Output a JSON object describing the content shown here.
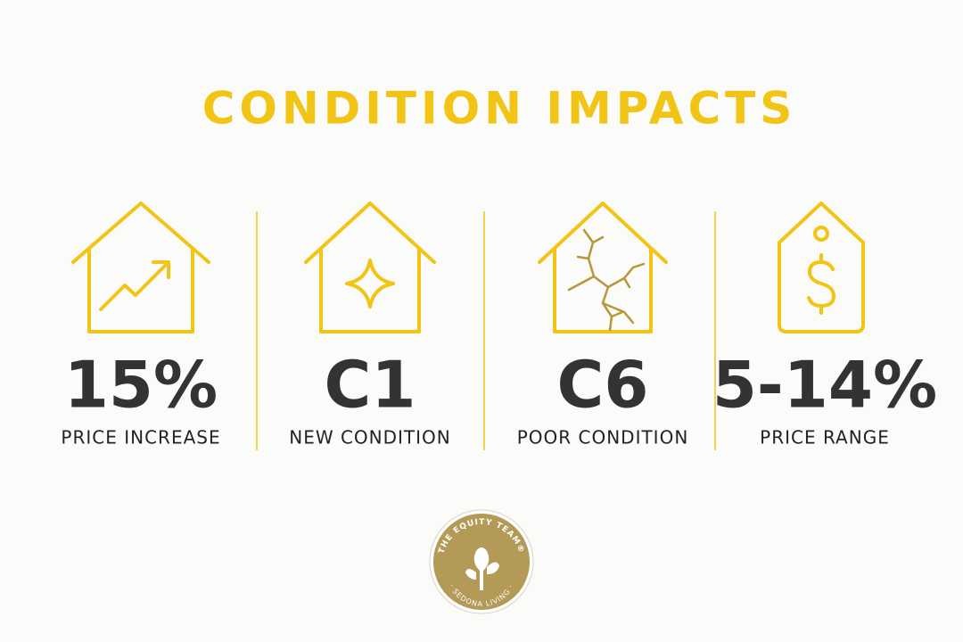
{
  "title": "CONDITION IMPACTS",
  "items": [
    {
      "value": "15%",
      "label": "PRICE INCREASE"
    },
    {
      "value": "C1",
      "label": "NEW CONDITION"
    },
    {
      "value": "C6",
      "label": "POOR CONDITION"
    },
    {
      "value": "5-14%",
      "label": "PRICE RANGE"
    }
  ],
  "logo": {
    "top": "THE EQUITY TEAM®",
    "bottom": "· SEDONA LIVING ·"
  }
}
